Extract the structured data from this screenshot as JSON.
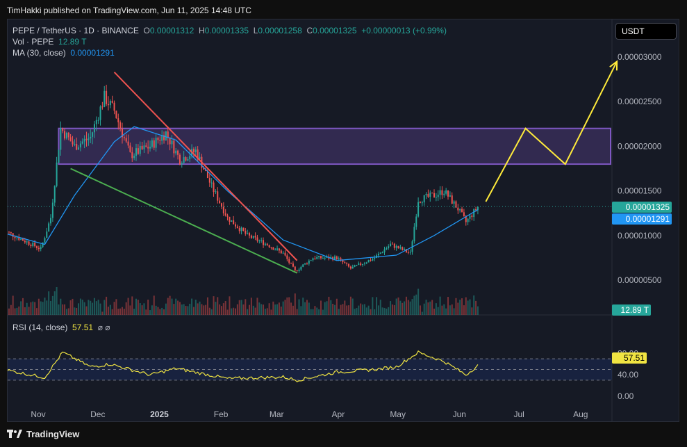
{
  "attribution": "TimHakki published on TradingView.com, Jun 11, 2025 14:48 UTC",
  "legend": {
    "symbol": "PEPE / TetherUS · 1D · BINANCE",
    "o_label": "O",
    "o": "0.00001312",
    "h_label": "H",
    "h": "0.00001335",
    "l_label": "L",
    "l": "0.00001258",
    "c_label": "C",
    "c": "0.00001325",
    "change": "+0.00000013 (+0.99%)",
    "vol_label": "Vol · PEPE",
    "vol": "12.89 T",
    "ma_label": "MA (30, close)",
    "ma": "0.00001291"
  },
  "currency_button": "USDT",
  "price_tags": {
    "last": "0.00001325",
    "ma": "0.00001291",
    "volume": "12.89 T",
    "rsi": "57.51"
  },
  "rsi_legend": {
    "label": "RSI (14, close)",
    "value": "57.51",
    "icons": "⌀  ⌀"
  },
  "footer": {
    "brand": "TradingView"
  },
  "colors": {
    "up": "#26a69a",
    "down": "#ef5350",
    "ma": "#2196f3",
    "rsi": "#f0e442",
    "zone": "#7e57c2",
    "projection": "#ffeb3b",
    "resistance_line": "#ef5350",
    "support_line": "#4caf50"
  },
  "chart_data": {
    "type": "candlestick",
    "title": "PEPE / TetherUS · 1D · BINANCE",
    "x_tick_labels": [
      "Nov",
      "Dec",
      "2025",
      "Feb",
      "Mar",
      "Apr",
      "May",
      "Jun",
      "Jul",
      "Aug"
    ],
    "y_tick_labels": [
      "0.00003000",
      "0.00002500",
      "0.00002000",
      "0.00001500",
      "0.00001000",
      "0.00000500"
    ],
    "ylim": [
      4.3e-06,
      3.25e-05
    ],
    "rsi_tick_labels": [
      "80.00",
      "40.00",
      "0.00"
    ],
    "rsi_ylim": [
      0,
      100
    ],
    "rsi_bands": [
      70,
      30
    ],
    "price_series": [
      {
        "date": "Oct 15",
        "close": 1.06e-05
      },
      {
        "date": "Oct 25",
        "close": 9.5e-06
      },
      {
        "date": "Nov 3",
        "close": 8.5e-06
      },
      {
        "date": "Nov 8",
        "close": 1.2e-05
      },
      {
        "date": "Nov 13",
        "close": 2.2e-05
      },
      {
        "date": "Nov 20",
        "close": 2e-05
      },
      {
        "date": "Nov 28",
        "close": 2.1e-05
      },
      {
        "date": "Dec 5",
        "close": 2.55e-05
      },
      {
        "date": "Dec 10",
        "close": 2.4e-05
      },
      {
        "date": "Dec 18",
        "close": 1.9e-05
      },
      {
        "date": "Dec 28",
        "close": 2e-05
      },
      {
        "date": "Jan 5",
        "close": 2.15e-05
      },
      {
        "date": "Jan 12",
        "close": 1.85e-05
      },
      {
        "date": "Jan 20",
        "close": 1.95e-05
      },
      {
        "date": "Jan 28",
        "close": 1.55e-05
      },
      {
        "date": "Feb 5",
        "close": 1.2e-05
      },
      {
        "date": "Feb 15",
        "close": 1e-05
      },
      {
        "date": "Feb 25",
        "close": 9e-06
      },
      {
        "date": "Mar 5",
        "close": 8e-06
      },
      {
        "date": "Mar 11",
        "close": 6e-06
      },
      {
        "date": "Mar 20",
        "close": 7.5e-06
      },
      {
        "date": "Apr 1",
        "close": 7.5e-06
      },
      {
        "date": "Apr 8",
        "close": 6.3e-06
      },
      {
        "date": "Apr 20",
        "close": 7.5e-06
      },
      {
        "date": "Apr 28",
        "close": 9e-06
      },
      {
        "date": "May 8",
        "close": 8e-06
      },
      {
        "date": "May 12",
        "close": 1.4e-05
      },
      {
        "date": "May 20",
        "close": 1.45e-05
      },
      {
        "date": "May 25",
        "close": 1.5e-05
      },
      {
        "date": "Jun 1",
        "close": 1.3e-05
      },
      {
        "date": "Jun 5",
        "close": 1.15e-05
      },
      {
        "date": "Jun 11",
        "close": 1.32e-05
      }
    ],
    "ma_series": [
      {
        "date": "Oct 15",
        "value": 1.03e-05
      },
      {
        "date": "Nov 5",
        "value": 9e-06
      },
      {
        "date": "Nov 20",
        "value": 1.45e-05
      },
      {
        "date": "Dec 10",
        "value": 2.05e-05
      },
      {
        "date": "Dec 20",
        "value": 2.22e-05
      },
      {
        "date": "Jan 10",
        "value": 2.07e-05
      },
      {
        "date": "Feb 5",
        "value": 1.5e-05
      },
      {
        "date": "Mar 5",
        "value": 9.5e-06
      },
      {
        "date": "Apr 1",
        "value": 7.2e-06
      },
      {
        "date": "May 1",
        "value": 7.8e-06
      },
      {
        "date": "May 20",
        "value": 1e-05
      },
      {
        "date": "Jun 11",
        "value": 1.29e-05
      }
    ],
    "rsi_series": [
      {
        "date": "Oct 15",
        "value": 50
      },
      {
        "date": "Nov 5",
        "value": 35
      },
      {
        "date": "Nov 14",
        "value": 82
      },
      {
        "date": "Nov 28",
        "value": 55
      },
      {
        "date": "Dec 8",
        "value": 60
      },
      {
        "date": "Dec 28",
        "value": 40
      },
      {
        "date": "Jan 10",
        "value": 52
      },
      {
        "date": "Feb 5",
        "value": 33
      },
      {
        "date": "Mar 5",
        "value": 36
      },
      {
        "date": "Mar 12",
        "value": 30
      },
      {
        "date": "Apr 1",
        "value": 45
      },
      {
        "date": "Apr 20",
        "value": 50
      },
      {
        "date": "May 1",
        "value": 55
      },
      {
        "date": "May 12",
        "value": 82
      },
      {
        "date": "May 25",
        "value": 65
      },
      {
        "date": "Jun 5",
        "value": 40
      },
      {
        "date": "Jun 11",
        "value": 57.51
      }
    ],
    "resistance_zone": [
      1.8e-05,
      2.2e-05
    ],
    "annotations": [
      {
        "type": "trendline",
        "name": "resistance",
        "points": [
          {
            "date": "Dec 10",
            "price": 2.83e-05
          },
          {
            "date": "Mar 12",
            "price": 7.2e-06
          }
        ]
      },
      {
        "type": "trendline",
        "name": "support",
        "points": [
          {
            "date": "Nov 18",
            "price": 1.75e-05
          },
          {
            "date": "Mar 12",
            "price": 5.8e-06
          }
        ]
      },
      {
        "type": "projection",
        "points": [
          {
            "date": "Jun 15",
            "price": 1.38e-05
          },
          {
            "date": "Jul 5",
            "price": 2.2e-05
          },
          {
            "date": "Jul 25",
            "price": 1.8e-05
          },
          {
            "date": "Aug 20",
            "price": 2.95e-05
          }
        ]
      }
    ]
  }
}
